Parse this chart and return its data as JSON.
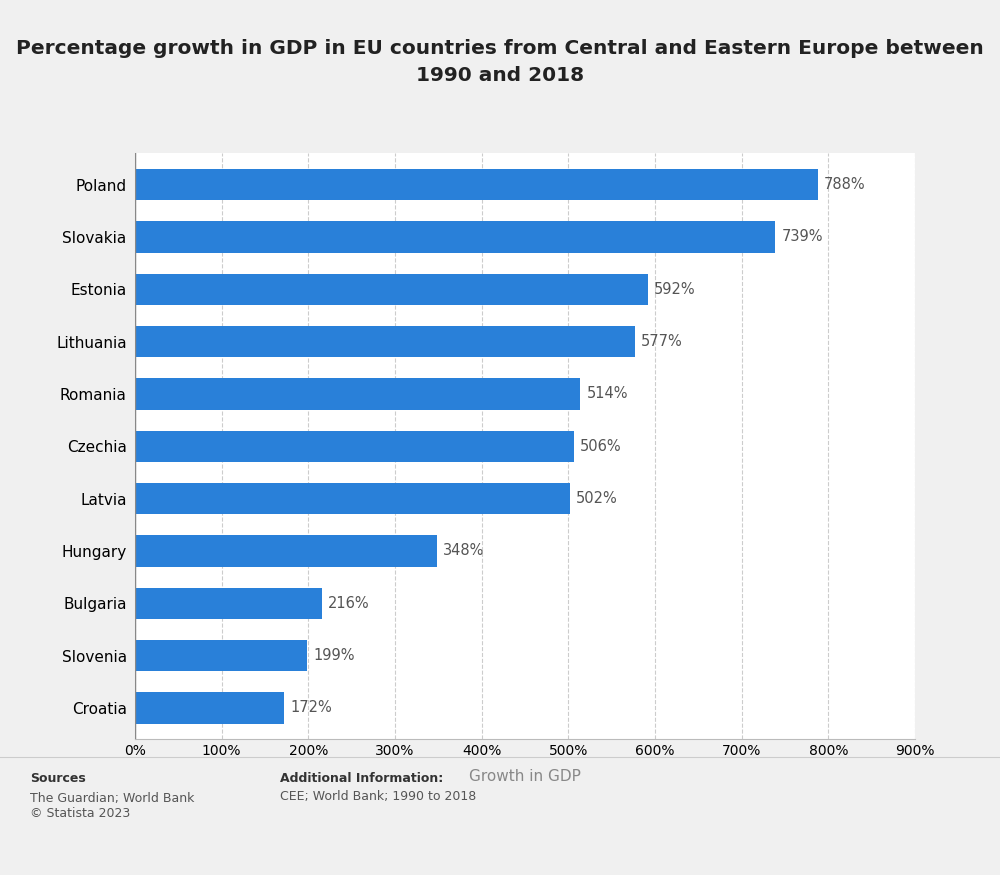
{
  "title": "Percentage growth in GDP in EU countries from Central and Eastern Europe between\n1990 and 2018",
  "countries": [
    "Poland",
    "Slovakia",
    "Estonia",
    "Lithuania",
    "Romania",
    "Czechia",
    "Latvia",
    "Hungary",
    "Bulgaria",
    "Slovenia",
    "Croatia"
  ],
  "values": [
    788,
    739,
    592,
    577,
    514,
    506,
    502,
    348,
    216,
    199,
    172
  ],
  "bar_color": "#2980d9",
  "xlabel": "Growth in GDP",
  "xlim": [
    0,
    900
  ],
  "xticks": [
    0,
    100,
    200,
    300,
    400,
    500,
    600,
    700,
    800,
    900
  ],
  "background_color": "#f0f0f0",
  "plot_bg_color": "#ffffff",
  "title_fontsize": 14.5,
  "label_fontsize": 11,
  "tick_fontsize": 10,
  "annotation_fontsize": 10.5,
  "annotation_color": "#555555",
  "sources_label": "Sources",
  "sources_body": "The Guardian; World Bank\n© Statista 2023",
  "additional_label": "Additional Information:",
  "additional_body": "CEE; World Bank; 1990 to 2018",
  "footer_fontsize": 9,
  "footer_label_fontsize": 9
}
